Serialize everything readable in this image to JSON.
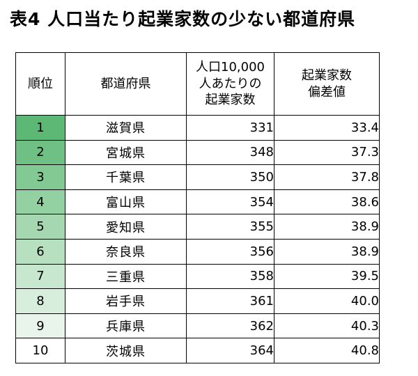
{
  "title": "表4 人口当たり起業家数の少ない都道府県",
  "headers": {
    "rank": "順位",
    "prefecture": "都道府県",
    "per_capita_lines": [
      "人口10,000",
      "人あたりの",
      "起業家数"
    ],
    "deviation_lines": [
      "起業家数",
      "偏差値"
    ]
  },
  "rows": [
    {
      "rank": "1",
      "prefecture": "滋賀県",
      "count": "331",
      "deviation": "33.4"
    },
    {
      "rank": "2",
      "prefecture": "宮城県",
      "count": "348",
      "deviation": "37.3"
    },
    {
      "rank": "3",
      "prefecture": "千葉県",
      "count": "350",
      "deviation": "37.8"
    },
    {
      "rank": "4",
      "prefecture": "富山県",
      "count": "354",
      "deviation": "38.6"
    },
    {
      "rank": "5",
      "prefecture": "愛知県",
      "count": "355",
      "deviation": "38.9"
    },
    {
      "rank": "6",
      "prefecture": "奈良県",
      "count": "356",
      "deviation": "38.9"
    },
    {
      "rank": "7",
      "prefecture": "三重県",
      "count": "358",
      "deviation": "39.5"
    },
    {
      "rank": "8",
      "prefecture": "岩手県",
      "count": "361",
      "deviation": "40.0"
    },
    {
      "rank": "9",
      "prefecture": "兵庫県",
      "count": "362",
      "deviation": "40.3"
    },
    {
      "rank": "10",
      "prefecture": "茨城県",
      "count": "364",
      "deviation": "40.8"
    }
  ],
  "rank_colors": [
    "#5cb874",
    "#6fc084",
    "#82c994",
    "#93d0a2",
    "#a5d8b1",
    "#b6e0c0",
    "#c7e7ce",
    "#d8eedc",
    "#e9f5eb",
    "#ffffff"
  ]
}
